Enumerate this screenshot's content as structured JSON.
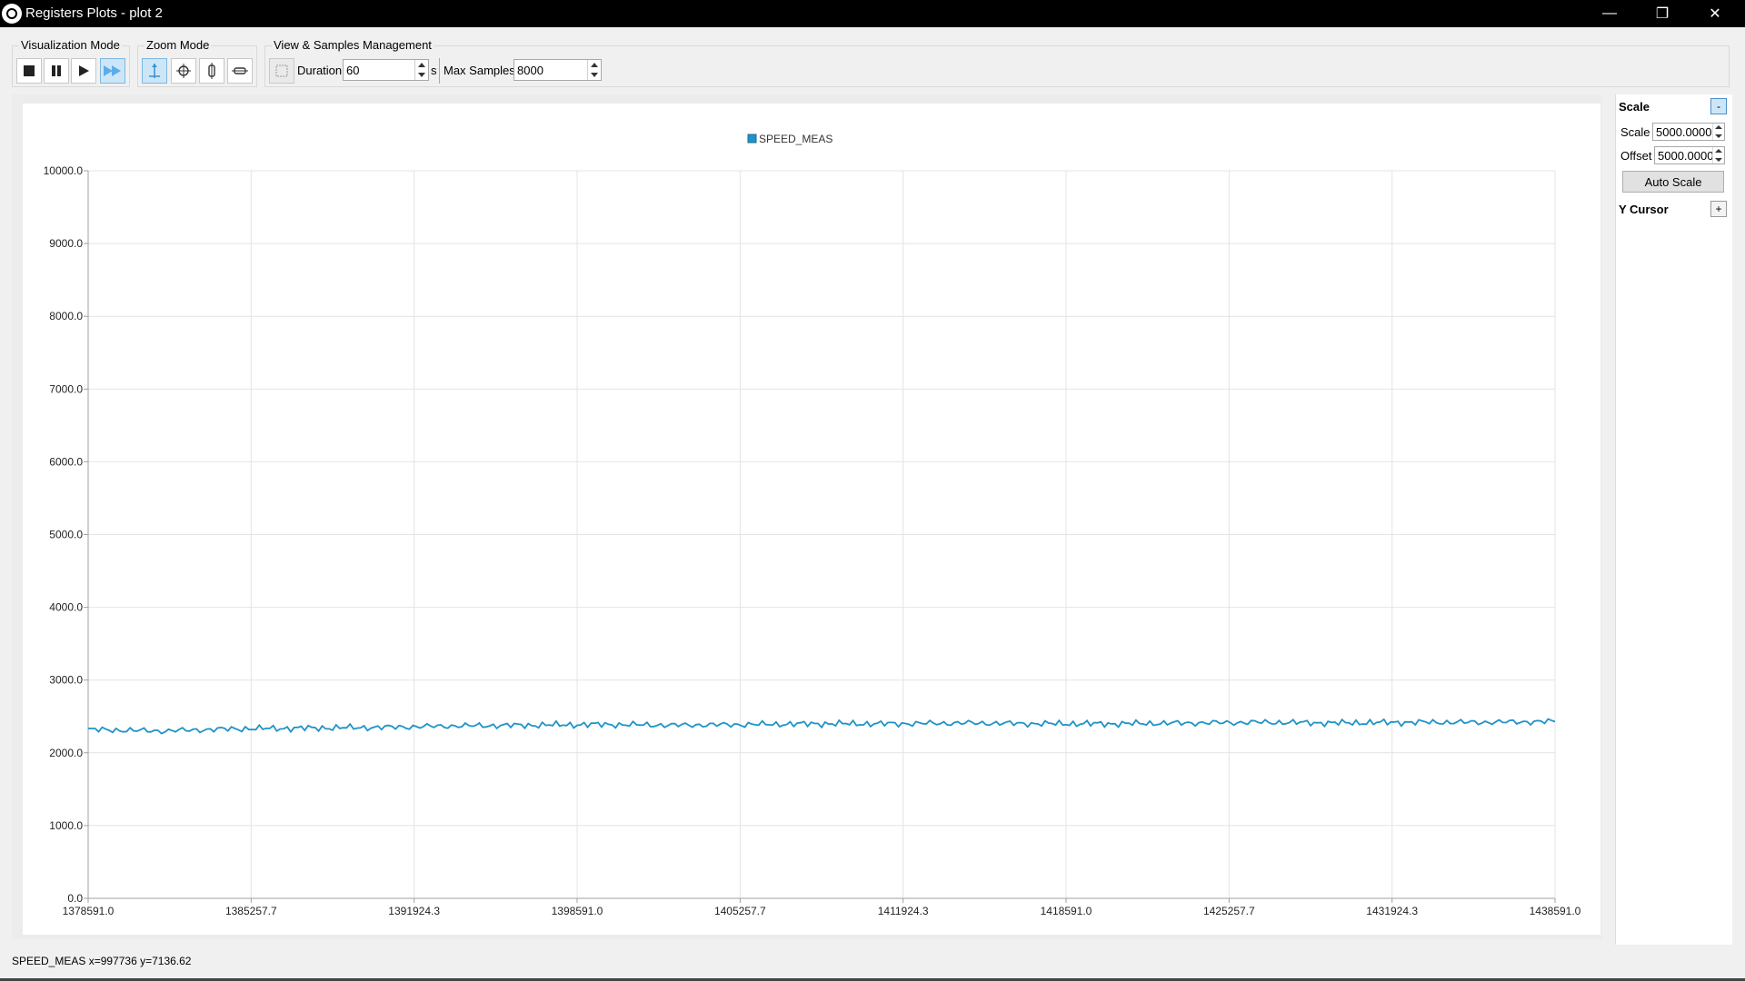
{
  "window": {
    "title": "Registers Plots - plot 2",
    "minimize": "—",
    "restore": "❐",
    "close": "✕"
  },
  "toolbar": {
    "visualization_mode": {
      "title": "Visualization Mode",
      "buttons": [
        "stop-icon",
        "pause-icon",
        "play-icon",
        "fast-forward-icon"
      ]
    },
    "zoom_mode": {
      "title": "Zoom Mode",
      "buttons": [
        "zoom-auto-icon",
        "zoom-center-icon",
        "zoom-vertical-icon",
        "zoom-horizontal-icon"
      ]
    },
    "view_samples": {
      "title": "View & Samples Management",
      "duration_label": "Duration",
      "duration_value": "60",
      "duration_unit": "s",
      "max_samples_label": "Max Samples",
      "max_samples_value": "8000"
    }
  },
  "right_panel": {
    "scale_header": "Scale",
    "collapse_label": "-",
    "scale_label": "Scale",
    "scale_value": "5000.0000",
    "offset_label": "Offset",
    "offset_value": "5000.0000",
    "auto_scale_label": "Auto Scale",
    "y_cursor_header": "Y Cursor",
    "expand_label": "+"
  },
  "status": {
    "text": "SPEED_MEAS x=997736 y=7136.62"
  },
  "colors": {
    "series": "#1f93c8",
    "grid": "#e4e4e4",
    "axis": "#a0a0a0"
  },
  "chart_data": {
    "type": "line",
    "title": "",
    "xlabel": "",
    "ylabel": "",
    "legend": "top-center",
    "grid": true,
    "xlim": [
      1378591.0,
      1438591.0
    ],
    "ylim": [
      0,
      10000
    ],
    "x_ticks": [
      "1378591.0",
      "1385257.7",
      "1391924.3",
      "1398591.0",
      "1405257.7",
      "1411924.3",
      "1418591.0",
      "1425257.7",
      "1431924.3",
      "1438591.0"
    ],
    "y_ticks": [
      "0.0",
      "1000.0",
      "2000.0",
      "3000.0",
      "4000.0",
      "5000.0",
      "6000.0",
      "7000.0",
      "8000.0",
      "9000.0",
      "10000.0"
    ],
    "series": [
      {
        "name": "SPEED_MEAS",
        "x": [
          1378591,
          1381591,
          1384591,
          1387591,
          1390591,
          1393591,
          1396591,
          1399591,
          1402591,
          1405591,
          1408591,
          1411591,
          1414591,
          1417591,
          1420591,
          1423591,
          1426591,
          1429591,
          1432591,
          1435591,
          1438591
        ],
        "y": [
          2320,
          2300,
          2330,
          2340,
          2350,
          2370,
          2380,
          2390,
          2380,
          2390,
          2400,
          2400,
          2410,
          2400,
          2400,
          2410,
          2420,
          2410,
          2420,
          2420,
          2430
        ]
      }
    ]
  }
}
